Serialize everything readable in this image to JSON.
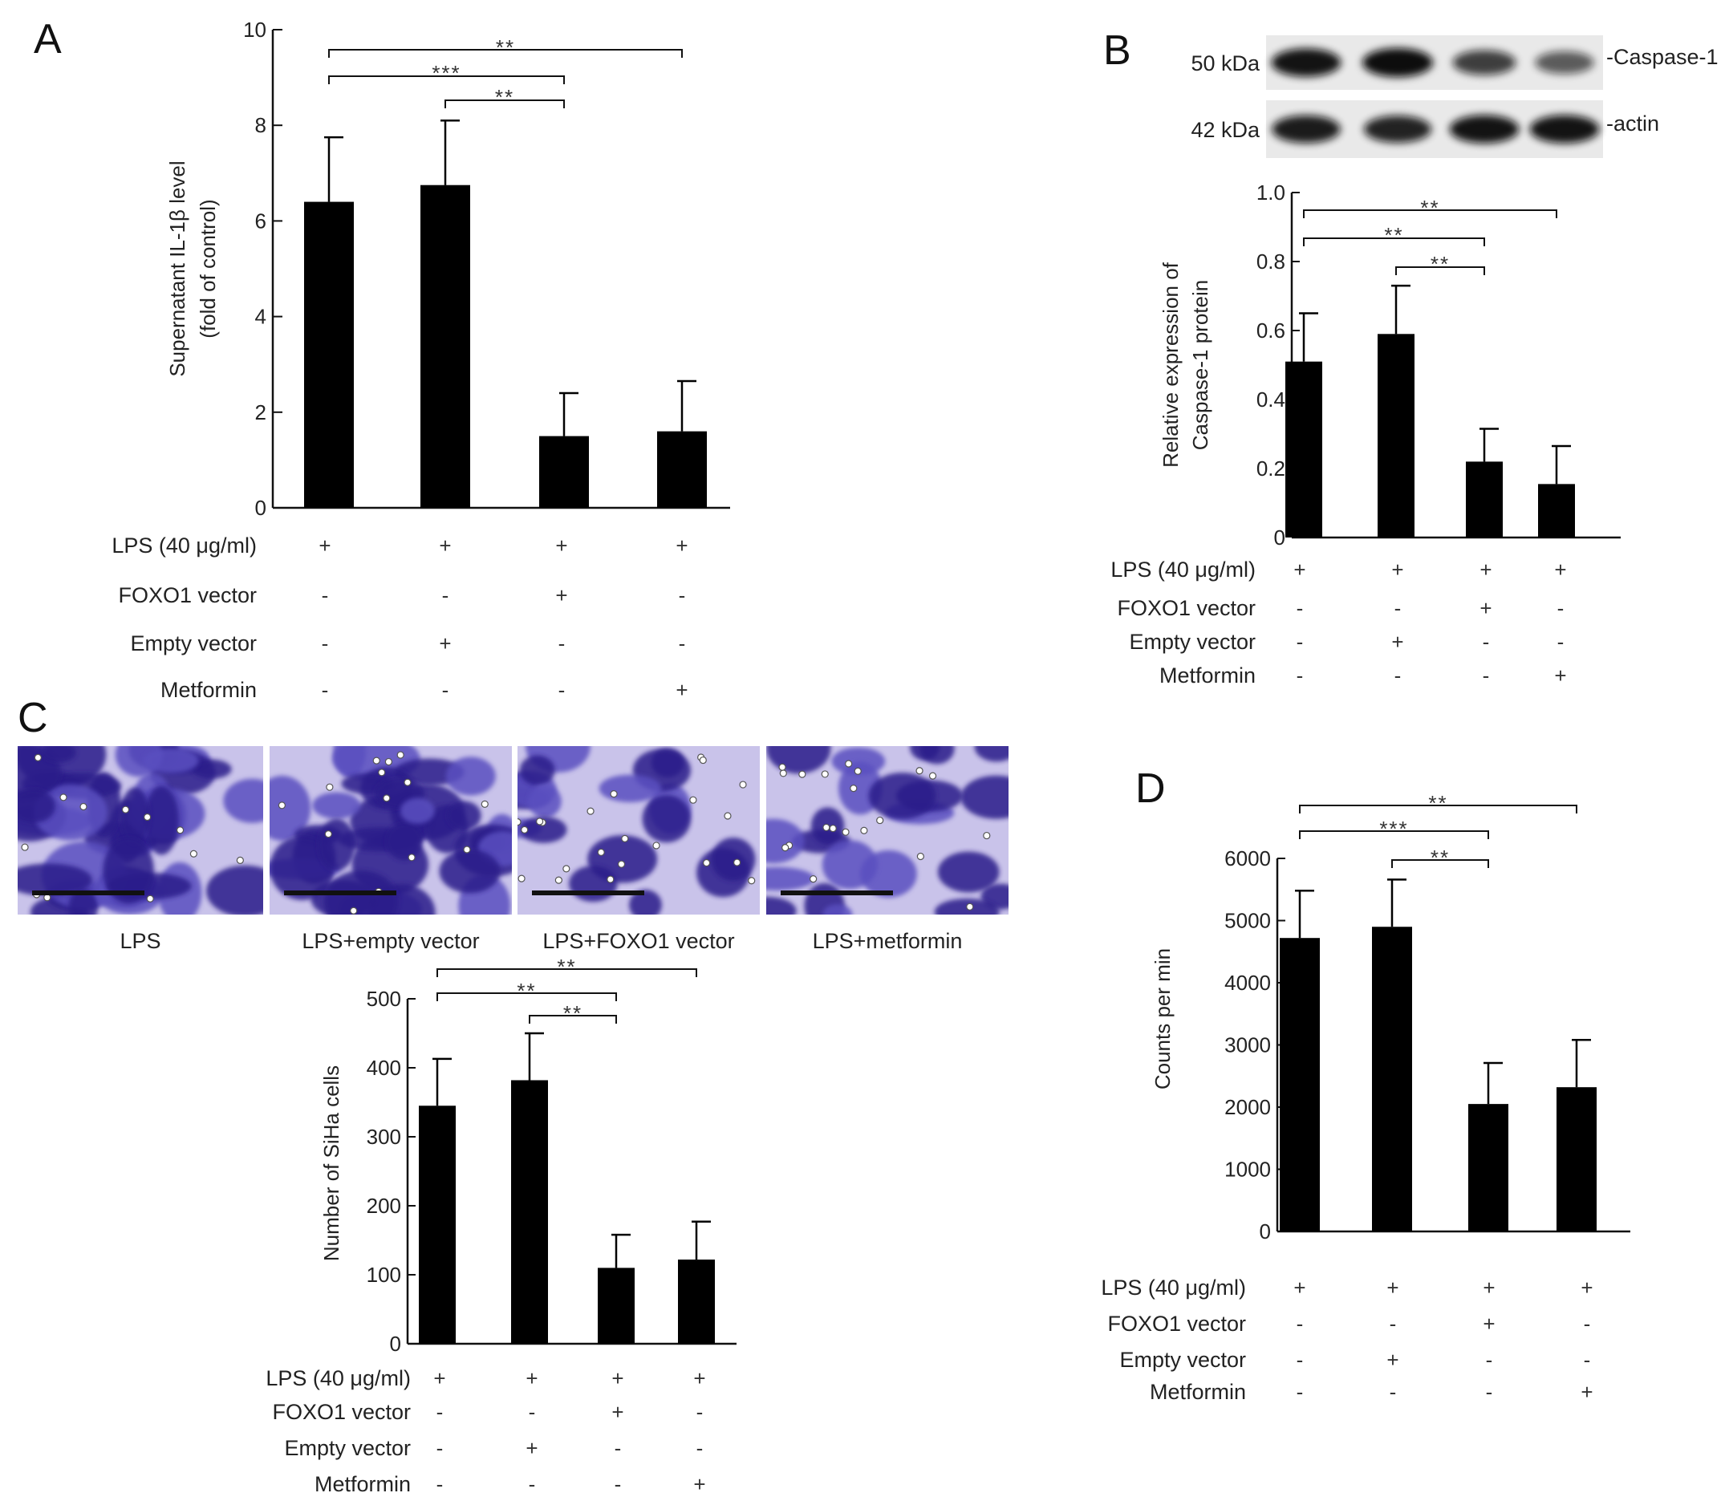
{
  "chart_data": [
    {
      "panel": "A",
      "type": "bar",
      "categories": [
        "1",
        "2",
        "3",
        "4"
      ],
      "values": [
        6.4,
        6.75,
        1.5,
        1.6
      ],
      "errors": [
        1.35,
        1.35,
        0.9,
        1.05
      ],
      "ylabel": [
        "Supernatant IL-1β level",
        "(fold of control)"
      ],
      "ylim": [
        0,
        10
      ],
      "yticks": [
        0,
        2,
        4,
        6,
        8,
        10
      ],
      "conditions": [
        {
          "label": "LPS (40 μg/ml)",
          "values": [
            "+",
            "+",
            "+",
            "+"
          ]
        },
        {
          "label": "FOXO1 vector",
          "values": [
            "-",
            "-",
            "+",
            "-"
          ]
        },
        {
          "label": "Empty vector",
          "values": [
            "-",
            "+",
            "-",
            "-"
          ]
        },
        {
          "label": "Metformin",
          "values": [
            "-",
            "-",
            "-",
            "+"
          ]
        }
      ],
      "significance": [
        {
          "from": 1,
          "to": 4,
          "label": "**"
        },
        {
          "from": 1,
          "to": 3,
          "label": "***"
        },
        {
          "from": 2,
          "to": 3,
          "label": "**"
        }
      ]
    },
    {
      "panel": "B",
      "type": "bar",
      "categories": [
        "1",
        "2",
        "3",
        "4"
      ],
      "values": [
        0.51,
        0.59,
        0.22,
        0.155
      ],
      "errors": [
        0.14,
        0.14,
        0.095,
        0.11
      ],
      "ylabel": [
        "Relative expression of",
        "Caspase-1 protein"
      ],
      "ylim": [
        0,
        1.0
      ],
      "yticks": [
        0,
        0.2,
        0.4,
        0.6,
        0.8,
        1.0
      ],
      "ytick_labels": [
        "0",
        "0.2",
        "0.4",
        "0.6",
        "0.8",
        "1.0"
      ],
      "conditions": [
        {
          "label": "LPS (40 μg/ml)",
          "values": [
            "+",
            "+",
            "+",
            "+"
          ]
        },
        {
          "label": "FOXO1 vector",
          "values": [
            "-",
            "-",
            "+",
            "-"
          ]
        },
        {
          "label": "Empty vector",
          "values": [
            "-",
            "+",
            "-",
            "-"
          ]
        },
        {
          "label": "Metformin",
          "values": [
            "-",
            "-",
            "-",
            "+"
          ]
        }
      ],
      "significance": [
        {
          "from": 1,
          "to": 4,
          "label": "**"
        },
        {
          "from": 1,
          "to": 3,
          "label": "**"
        },
        {
          "from": 2,
          "to": 3,
          "label": "**"
        }
      ],
      "blot": {
        "rows": [
          {
            "kda": "50 kDa",
            "protein": "-Caspase-1",
            "intensities": [
              0.95,
              1.0,
              0.65,
              0.45
            ]
          },
          {
            "kda": "42 kDa",
            "protein": "-actin",
            "intensities": [
              0.9,
              0.85,
              0.95,
              0.95
            ]
          }
        ]
      }
    },
    {
      "panel": "C",
      "type": "bar",
      "categories": [
        "1",
        "2",
        "3",
        "4"
      ],
      "values": [
        345,
        382,
        110,
        122
      ],
      "errors": [
        68,
        68,
        48,
        55
      ],
      "ylabel": [
        "Number of SiHa cells"
      ],
      "ylim": [
        0,
        500
      ],
      "yticks": [
        0,
        100,
        200,
        300,
        400,
        500
      ],
      "conditions": [
        {
          "label": "LPS (40 μg/ml)",
          "values": [
            "+",
            "+",
            "+",
            "+"
          ]
        },
        {
          "label": "FOXO1 vector",
          "values": [
            "-",
            "-",
            "+",
            "-"
          ]
        },
        {
          "label": "Empty vector",
          "values": [
            "-",
            "+",
            "-",
            "-"
          ]
        },
        {
          "label": "Metformin",
          "values": [
            "-",
            "-",
            "-",
            "+"
          ]
        }
      ],
      "significance": [
        {
          "from": 1,
          "to": 4,
          "label": "**"
        },
        {
          "from": 1,
          "to": 3,
          "label": "**"
        },
        {
          "from": 2,
          "to": 3,
          "label": "**"
        }
      ],
      "micrographs": [
        {
          "caption": "LPS",
          "density": 1.0
        },
        {
          "caption": "LPS+empty vector",
          "density": 0.85
        },
        {
          "caption": "LPS+FOXO1 vector",
          "density": 0.3
        },
        {
          "caption": "LPS+metformin",
          "density": 0.45
        }
      ]
    },
    {
      "panel": "D",
      "type": "bar",
      "categories": [
        "1",
        "2",
        "3",
        "4"
      ],
      "values": [
        4720,
        4900,
        2050,
        2320
      ],
      "errors": [
        760,
        760,
        660,
        760
      ],
      "ylabel": [
        "Counts per min"
      ],
      "ylim": [
        0,
        6000
      ],
      "yticks": [
        0,
        1000,
        2000,
        3000,
        4000,
        5000,
        6000
      ],
      "conditions": [
        {
          "label": "LPS (40 μg/ml)",
          "values": [
            "+",
            "+",
            "+",
            "+"
          ]
        },
        {
          "label": "FOXO1 vector",
          "values": [
            "-",
            "-",
            "+",
            "-"
          ]
        },
        {
          "label": "Empty vector",
          "values": [
            "-",
            "+",
            "-",
            "-"
          ]
        },
        {
          "label": "Metformin",
          "values": [
            "-",
            "-",
            "-",
            "+"
          ]
        }
      ],
      "significance": [
        {
          "from": 1,
          "to": 4,
          "label": "**"
        },
        {
          "from": 1,
          "to": 3,
          "label": "***"
        },
        {
          "from": 2,
          "to": 3,
          "label": "**"
        }
      ]
    }
  ],
  "colors": {
    "bar": "#000000",
    "axis": "#111111",
    "stain_dark": "#2a1f8a",
    "stain_mid": "#5a4fc0",
    "stain_light": "#c9c3ea"
  }
}
